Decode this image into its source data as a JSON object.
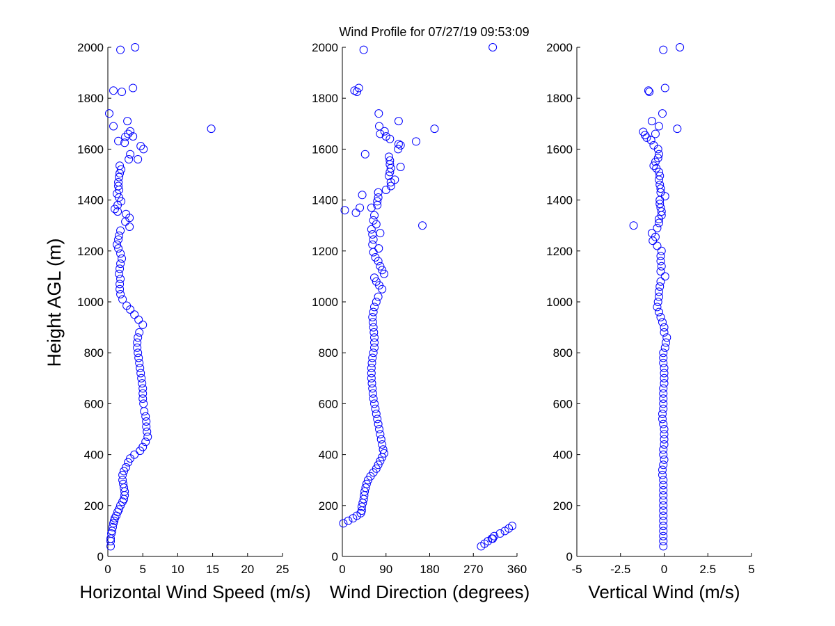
{
  "title": "Wind Profile for  07/27/19 09:53:09",
  "ylabel": "Height AGL (m)",
  "series_color": "#0000ff",
  "chart_data": [
    {
      "type": "scatter",
      "xlabel": "Horizontal Wind Speed (m/s)",
      "xlim": [
        0,
        25
      ],
      "xticks": [
        0,
        5,
        10,
        15,
        20,
        25
      ],
      "xticklabels": [
        "0",
        "5",
        "10",
        "15",
        "20",
        "25"
      ],
      "ylim": [
        0,
        2000
      ],
      "yticks": [
        0,
        200,
        400,
        600,
        800,
        1000,
        1200,
        1400,
        1600,
        1800,
        2000
      ],
      "points": [
        [
          0.4,
          40
        ],
        [
          0.4,
          60
        ],
        [
          0.4,
          70
        ],
        [
          0.5,
          90
        ],
        [
          0.6,
          100
        ],
        [
          0.7,
          115
        ],
        [
          0.8,
          130
        ],
        [
          0.9,
          140
        ],
        [
          1.0,
          150
        ],
        [
          1.2,
          160
        ],
        [
          1.4,
          175
        ],
        [
          1.6,
          185
        ],
        [
          1.8,
          200
        ],
        [
          2.1,
          215
        ],
        [
          2.3,
          225
        ],
        [
          2.4,
          240
        ],
        [
          2.4,
          255
        ],
        [
          2.3,
          270
        ],
        [
          2.2,
          285
        ],
        [
          2.1,
          300
        ],
        [
          2.1,
          320
        ],
        [
          2.3,
          335
        ],
        [
          2.6,
          350
        ],
        [
          2.9,
          370
        ],
        [
          3.2,
          385
        ],
        [
          3.8,
          400
        ],
        [
          4.6,
          415
        ],
        [
          5.0,
          430
        ],
        [
          5.4,
          450
        ],
        [
          5.7,
          470
        ],
        [
          5.6,
          490
        ],
        [
          5.5,
          510
        ],
        [
          5.5,
          530
        ],
        [
          5.4,
          550
        ],
        [
          5.2,
          570
        ],
        [
          5.1,
          600
        ],
        [
          5.0,
          620
        ],
        [
          5.0,
          640
        ],
        [
          5.0,
          660
        ],
        [
          4.9,
          680
        ],
        [
          4.8,
          700
        ],
        [
          4.7,
          720
        ],
        [
          4.6,
          740
        ],
        [
          4.5,
          760
        ],
        [
          4.4,
          780
        ],
        [
          4.3,
          800
        ],
        [
          4.2,
          820
        ],
        [
          4.2,
          840
        ],
        [
          4.3,
          860
        ],
        [
          4.5,
          880
        ],
        [
          5.0,
          910
        ],
        [
          4.4,
          930
        ],
        [
          3.8,
          950
        ],
        [
          3.2,
          970
        ],
        [
          2.7,
          985
        ],
        [
          2.1,
          1010
        ],
        [
          1.8,
          1030
        ],
        [
          1.7,
          1050
        ],
        [
          1.7,
          1070
        ],
        [
          1.8,
          1090
        ],
        [
          1.6,
          1110
        ],
        [
          1.7,
          1130
        ],
        [
          1.8,
          1150
        ],
        [
          2.0,
          1170
        ],
        [
          1.8,
          1190
        ],
        [
          1.5,
          1210
        ],
        [
          1.3,
          1225
        ],
        [
          1.5,
          1245
        ],
        [
          1.6,
          1260
        ],
        [
          1.8,
          1280
        ],
        [
          3.1,
          1295
        ],
        [
          2.5,
          1315
        ],
        [
          3.1,
          1330
        ],
        [
          2.6,
          1345
        ],
        [
          1.4,
          1355
        ],
        [
          1.0,
          1365
        ],
        [
          1.4,
          1380
        ],
        [
          1.9,
          1395
        ],
        [
          1.6,
          1410
        ],
        [
          1.3,
          1425
        ],
        [
          1.6,
          1440
        ],
        [
          1.5,
          1455
        ],
        [
          1.5,
          1470
        ],
        [
          1.6,
          1490
        ],
        [
          1.7,
          1505
        ],
        [
          1.9,
          1520
        ],
        [
          1.7,
          1535
        ],
        [
          3.0,
          1560
        ],
        [
          3.2,
          1580
        ],
        [
          4.3,
          1560
        ],
        [
          5.1,
          1600
        ],
        [
          4.7,
          1612
        ],
        [
          2.4,
          1625
        ],
        [
          1.5,
          1632
        ],
        [
          2.5,
          1648
        ],
        [
          2.9,
          1660
        ],
        [
          3.2,
          1670
        ],
        [
          3.6,
          1650
        ],
        [
          2.8,
          1710
        ],
        [
          0.2,
          1740
        ],
        [
          0.8,
          1690
        ],
        [
          14.8,
          1680
        ],
        [
          2.0,
          1825
        ],
        [
          0.8,
          1830
        ],
        [
          3.6,
          1840
        ],
        [
          1.8,
          1990
        ],
        [
          3.9,
          2000
        ]
      ]
    },
    {
      "type": "scatter",
      "xlabel": "Wind Direction (degrees)",
      "xlim": [
        0,
        360
      ],
      "xticks": [
        0,
        90,
        180,
        270,
        360
      ],
      "xticklabels": [
        "0",
        "90",
        "180",
        "270",
        "360"
      ],
      "ylim": [
        0,
        2000
      ],
      "yticks": [
        0,
        200,
        400,
        600,
        800,
        1000,
        1200,
        1400,
        1600,
        1800,
        2000
      ],
      "points": [
        [
          2,
          130
        ],
        [
          12,
          140
        ],
        [
          22,
          150
        ],
        [
          30,
          160
        ],
        [
          38,
          170
        ],
        [
          40,
          180
        ],
        [
          40,
          195
        ],
        [
          42,
          210
        ],
        [
          44,
          225
        ],
        [
          45,
          240
        ],
        [
          46,
          255
        ],
        [
          48,
          270
        ],
        [
          50,
          285
        ],
        [
          53,
          300
        ],
        [
          58,
          315
        ],
        [
          64,
          330
        ],
        [
          70,
          345
        ],
        [
          74,
          360
        ],
        [
          78,
          375
        ],
        [
          82,
          390
        ],
        [
          86,
          405
        ],
        [
          84,
          420
        ],
        [
          82,
          440
        ],
        [
          80,
          460
        ],
        [
          78,
          480
        ],
        [
          76,
          500
        ],
        [
          74,
          520
        ],
        [
          72,
          540
        ],
        [
          70,
          560
        ],
        [
          68,
          580
        ],
        [
          66,
          600
        ],
        [
          64,
          620
        ],
        [
          63,
          640
        ],
        [
          62,
          660
        ],
        [
          61,
          680
        ],
        [
          60,
          700
        ],
        [
          60,
          720
        ],
        [
          60,
          740
        ],
        [
          61,
          760
        ],
        [
          62,
          780
        ],
        [
          64,
          800
        ],
        [
          66,
          820
        ],
        [
          66,
          840
        ],
        [
          66,
          860
        ],
        [
          65,
          880
        ],
        [
          64,
          900
        ],
        [
          63,
          920
        ],
        [
          62,
          940
        ],
        [
          64,
          960
        ],
        [
          66,
          980
        ],
        [
          70,
          1000
        ],
        [
          74,
          1020
        ],
        [
          82,
          1050
        ],
        [
          76,
          1065
        ],
        [
          70,
          1080
        ],
        [
          66,
          1095
        ],
        [
          86,
          1110
        ],
        [
          82,
          1125
        ],
        [
          78,
          1140
        ],
        [
          74,
          1160
        ],
        [
          68,
          1175
        ],
        [
          64,
          1195
        ],
        [
          75,
          1210
        ],
        [
          62,
          1225
        ],
        [
          64,
          1245
        ],
        [
          62,
          1265
        ],
        [
          78,
          1270
        ],
        [
          60,
          1285
        ],
        [
          70,
          1305
        ],
        [
          64,
          1320
        ],
        [
          66,
          1340
        ],
        [
          5,
          1360
        ],
        [
          28,
          1350
        ],
        [
          36,
          1370
        ],
        [
          60,
          1370
        ],
        [
          72,
          1380
        ],
        [
          72,
          1395
        ],
        [
          74,
          1410
        ],
        [
          74,
          1430
        ],
        [
          90,
          1440
        ],
        [
          41,
          1420
        ],
        [
          100,
          1455
        ],
        [
          100,
          1470
        ],
        [
          108,
          1480
        ],
        [
          96,
          1495
        ],
        [
          98,
          1510
        ],
        [
          100,
          1525
        ],
        [
          120,
          1530
        ],
        [
          98,
          1540
        ],
        [
          98,
          1555
        ],
        [
          96,
          1570
        ],
        [
          47,
          1580
        ],
        [
          115,
          1600
        ],
        [
          120,
          1615
        ],
        [
          116,
          1620
        ],
        [
          152,
          1630
        ],
        [
          98,
          1640
        ],
        [
          90,
          1650
        ],
        [
          87,
          1670
        ],
        [
          78,
          1660
        ],
        [
          76,
          1690
        ],
        [
          190,
          1680
        ],
        [
          116,
          1710
        ],
        [
          75,
          1740
        ],
        [
          30,
          1825
        ],
        [
          25,
          1830
        ],
        [
          34,
          1840
        ],
        [
          44,
          1990
        ],
        [
          310,
          2000
        ],
        [
          165,
          1300
        ],
        [
          286,
          40
        ],
        [
          293,
          50
        ],
        [
          300,
          60
        ],
        [
          308,
          70
        ],
        [
          313,
          80
        ],
        [
          325,
          90
        ],
        [
          335,
          100
        ],
        [
          343,
          110
        ],
        [
          350,
          120
        ],
        [
          310,
          70
        ]
      ]
    },
    {
      "type": "scatter",
      "xlabel": "Vertical Wind (m/s)",
      "xlim": [
        -5,
        5
      ],
      "xticks": [
        -5,
        -2.5,
        0,
        2.5,
        5
      ],
      "xticklabels": [
        "-5",
        "-2.5",
        "0",
        "2.5",
        "5"
      ],
      "ylim": [
        0,
        2000
      ],
      "yticks": [
        0,
        200,
        400,
        600,
        800,
        1000,
        1200,
        1400,
        1600,
        1800,
        2000
      ],
      "points": [
        [
          -0.05,
          40
        ],
        [
          -0.05,
          60
        ],
        [
          -0.05,
          80
        ],
        [
          -0.05,
          100
        ],
        [
          -0.05,
          120
        ],
        [
          -0.05,
          140
        ],
        [
          -0.05,
          160
        ],
        [
          -0.05,
          180
        ],
        [
          -0.05,
          200
        ],
        [
          -0.05,
          220
        ],
        [
          -0.05,
          240
        ],
        [
          -0.05,
          260
        ],
        [
          -0.05,
          280
        ],
        [
          -0.05,
          300
        ],
        [
          -0.1,
          320
        ],
        [
          -0.1,
          340
        ],
        [
          -0.05,
          360
        ],
        [
          0.0,
          380
        ],
        [
          -0.05,
          400
        ],
        [
          -0.05,
          420
        ],
        [
          0.0,
          440
        ],
        [
          0.0,
          460
        ],
        [
          0.0,
          480
        ],
        [
          0.0,
          500
        ],
        [
          -0.05,
          520
        ],
        [
          -0.1,
          540
        ],
        [
          -0.1,
          560
        ],
        [
          -0.05,
          580
        ],
        [
          -0.05,
          600
        ],
        [
          -0.05,
          620
        ],
        [
          -0.05,
          640
        ],
        [
          -0.05,
          660
        ],
        [
          0.0,
          680
        ],
        [
          0.0,
          700
        ],
        [
          0.0,
          720
        ],
        [
          0.0,
          740
        ],
        [
          -0.05,
          760
        ],
        [
          -0.05,
          780
        ],
        [
          -0.05,
          800
        ],
        [
          0.05,
          820
        ],
        [
          0.1,
          840
        ],
        [
          0.15,
          860
        ],
        [
          0.0,
          880
        ],
        [
          0.0,
          900
        ],
        [
          -0.1,
          920
        ],
        [
          -0.2,
          940
        ],
        [
          -0.3,
          960
        ],
        [
          -0.4,
          980
        ],
        [
          -0.35,
          1000
        ],
        [
          -0.3,
          1020
        ],
        [
          -0.3,
          1040
        ],
        [
          -0.25,
          1060
        ],
        [
          -0.2,
          1080
        ],
        [
          0.05,
          1100
        ],
        [
          -0.2,
          1120
        ],
        [
          -0.15,
          1140
        ],
        [
          -0.2,
          1160
        ],
        [
          -0.2,
          1180
        ],
        [
          -0.15,
          1200
        ],
        [
          -0.4,
          1220
        ],
        [
          -0.65,
          1240
        ],
        [
          -0.5,
          1255
        ],
        [
          -0.7,
          1270
        ],
        [
          -0.4,
          1290
        ],
        [
          -0.3,
          1310
        ],
        [
          -0.3,
          1325
        ],
        [
          -1.75,
          1300
        ],
        [
          -0.15,
          1340
        ],
        [
          -0.15,
          1355
        ],
        [
          -0.2,
          1370
        ],
        [
          -0.25,
          1385
        ],
        [
          -0.25,
          1400
        ],
        [
          0.05,
          1415
        ],
        [
          -0.2,
          1430
        ],
        [
          -0.2,
          1445
        ],
        [
          -0.25,
          1460
        ],
        [
          -0.3,
          1480
        ],
        [
          -0.25,
          1495
        ],
        [
          -0.3,
          1510
        ],
        [
          -0.45,
          1525
        ],
        [
          -0.6,
          1535
        ],
        [
          -0.5,
          1550
        ],
        [
          -0.35,
          1565
        ],
        [
          -0.3,
          1580
        ],
        [
          -0.35,
          1600
        ],
        [
          -0.6,
          1615
        ],
        [
          -0.75,
          1635
        ],
        [
          -1.0,
          1645
        ],
        [
          -1.1,
          1655
        ],
        [
          -1.2,
          1668
        ],
        [
          -0.5,
          1660
        ],
        [
          -0.3,
          1690
        ],
        [
          0.75,
          1680
        ],
        [
          -0.7,
          1710
        ],
        [
          -0.1,
          1740
        ],
        [
          -0.85,
          1825
        ],
        [
          -0.9,
          1830
        ],
        [
          0.05,
          1840
        ],
        [
          -0.05,
          1990
        ],
        [
          0.9,
          2000
        ]
      ]
    }
  ]
}
